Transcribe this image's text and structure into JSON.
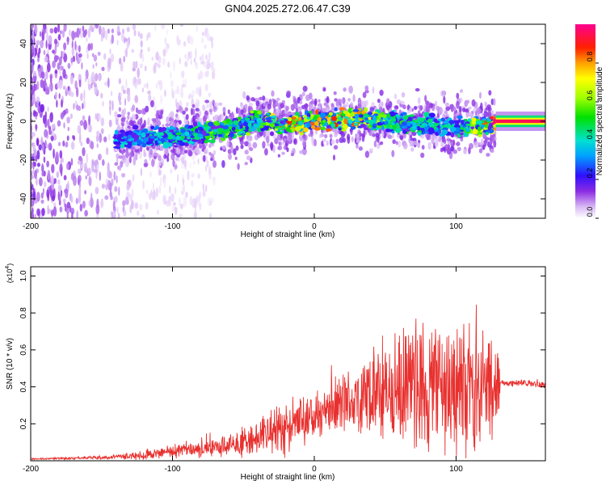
{
  "title": "GN04.2025.272.06.47.C39",
  "chart_data": [
    {
      "type": "heatmap",
      "name": "spectrogram",
      "xlabel": "Height of straight line (km)",
      "ylabel": "Frequency (Hz)",
      "xlim": [
        -200,
        163
      ],
      "ylim": [
        -50,
        50
      ],
      "xticks": [
        -200,
        -100,
        0,
        100
      ],
      "xtick_labels": [
        "-200",
        "-100",
        "0",
        "100"
      ],
      "yticks": [
        -40,
        -20,
        0,
        20,
        40
      ],
      "ytick_labels": [
        "-40",
        "-20",
        "0",
        "20",
        "40"
      ],
      "colorbar": {
        "label": "Normalized spectral amplitude",
        "range": [
          0,
          1
        ],
        "ticks": [
          0,
          0.2,
          0.4,
          0.6,
          0.8
        ],
        "tick_labels": [
          "0.0",
          "0.2",
          "0.4",
          "0.6",
          "0.8"
        ]
      },
      "ridge": {
        "description_points_x": [
          -140,
          -100,
          -70,
          -50,
          -40,
          -20,
          0,
          20,
          40,
          60,
          80,
          100,
          128,
          163
        ],
        "frequency": [
          -9,
          -8,
          -5,
          -3,
          1,
          -2,
          0,
          1,
          1,
          -1,
          -2,
          -3,
          -2,
          1
        ],
        "peak_amplitude": [
          0.35,
          0.45,
          0.55,
          0.6,
          0.55,
          0.85,
          0.8,
          0.9,
          0.7,
          0.5,
          0.45,
          0.4,
          1.0,
          1.0
        ]
      },
      "noise_region_x": [
        -200,
        -130
      ]
    },
    {
      "type": "line",
      "name": "snr",
      "xlabel": "Height of straight line (km)",
      "ylabel": "SNR (10 * v/v)",
      "y_multiplier_label": "(x10",
      "y_multiplier_exponent": "4",
      "y_multiplier_close": ")",
      "xlim": [
        -200,
        163
      ],
      "ylim": [
        0,
        1.05
      ],
      "xticks": [
        -200,
        -100,
        0,
        100
      ],
      "xtick_labels": [
        "-200",
        "-100",
        "0",
        "100"
      ],
      "yticks": [
        0.2,
        0.4,
        0.6,
        0.8,
        1.0
      ],
      "ytick_labels": [
        "0.2",
        "0.4",
        "0.6",
        "0.8",
        "1.0"
      ],
      "color": "#e8312f",
      "envelope": {
        "x": [
          -200,
          -160,
          -140,
          -120,
          -100,
          -80,
          -60,
          -50,
          -40,
          -30,
          -20,
          -10,
          0,
          10,
          20,
          30,
          40,
          50,
          60,
          70,
          80,
          90,
          100,
          110,
          120,
          130,
          131,
          140,
          150,
          163
        ],
        "base": [
          0.01,
          0.015,
          0.02,
          0.03,
          0.05,
          0.06,
          0.08,
          0.1,
          0.13,
          0.15,
          0.18,
          0.22,
          0.24,
          0.27,
          0.31,
          0.33,
          0.35,
          0.36,
          0.38,
          0.4,
          0.4,
          0.41,
          0.4,
          0.4,
          0.39,
          0.38,
          0.42,
          0.42,
          0.42,
          0.41
        ],
        "amplitude": [
          0.005,
          0.008,
          0.015,
          0.03,
          0.04,
          0.05,
          0.07,
          0.09,
          0.12,
          0.14,
          0.18,
          0.16,
          0.14,
          0.16,
          0.2,
          0.24,
          0.28,
          0.32,
          0.36,
          0.4,
          0.44,
          0.44,
          0.42,
          0.4,
          0.36,
          0.3,
          0.02,
          0.02,
          0.02,
          0.02
        ]
      }
    }
  ]
}
